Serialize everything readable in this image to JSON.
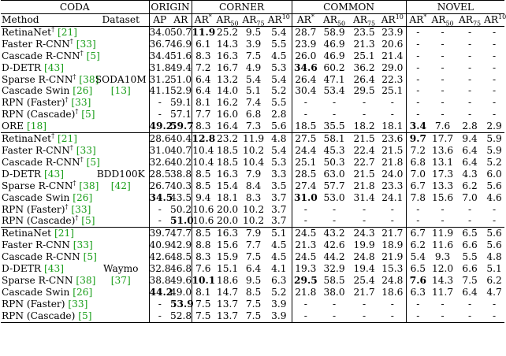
{
  "header": {
    "coda": "CODA",
    "groups": [
      "ORIGIN",
      "CORNER",
      "COMMON",
      "NOVEL"
    ],
    "method": "Method",
    "dataset": "Dataset",
    "origin_cols": [
      "AP",
      "AR"
    ],
    "ar_cols": [
      {
        "base": "AR",
        "sup": "*",
        "sub": ""
      },
      {
        "base": "AR",
        "sup": "",
        "sub": "50"
      },
      {
        "base": "AR",
        "sup": "",
        "sub": "75"
      },
      {
        "base": "AR",
        "sup": "10",
        "sub": ""
      }
    ]
  },
  "sections": [
    {
      "dataset": "SODA10M",
      "dataset_ref": "[13]",
      "rows": [
        {
          "method": "RetinaNet",
          "dagger": "†",
          "ref": "[21]",
          "cells": [
            "34.0",
            "50.7",
            "11.9",
            "25.2",
            "9.5",
            "5.4",
            "28.7",
            "58.9",
            "23.5",
            "23.9",
            "-",
            "-",
            "-",
            "-"
          ],
          "bold": [
            2
          ]
        },
        {
          "method": "Faster R-CNN",
          "dagger": "†",
          "ref": "[33]",
          "cells": [
            "36.7",
            "46.9",
            "6.1",
            "14.3",
            "3.9",
            "5.5",
            "23.9",
            "46.9",
            "21.3",
            "20.6",
            "-",
            "-",
            "-",
            "-"
          ],
          "bold": []
        },
        {
          "method": "Cascade R-CNN",
          "dagger": "†",
          "ref": "[5]",
          "cells": [
            "34.4",
            "51.6",
            "8.3",
            "16.3",
            "7.5",
            "4.5",
            "26.0",
            "46.9",
            "25.1",
            "21.4",
            "-",
            "-",
            "-",
            "-"
          ],
          "bold": []
        },
        {
          "method": "D-DETR",
          "dagger": "",
          "ref": "[43]",
          "cells": [
            "31.8",
            "49.4",
            "7.2",
            "16.7",
            "4.9",
            "5.3",
            "34.6",
            "60.2",
            "36.2",
            "29.0",
            "-",
            "-",
            "-",
            "-"
          ],
          "bold": [
            6
          ]
        },
        {
          "method": "Sparse R-CNN",
          "dagger": "†",
          "ref": "[38]",
          "cells": [
            "31.2",
            "51.0",
            "6.4",
            "13.2",
            "5.4",
            "5.4",
            "26.4",
            "47.1",
            "26.4",
            "22.3",
            "-",
            "-",
            "-",
            "-"
          ],
          "bold": []
        },
        {
          "method": "Cascade Swin",
          "dagger": "",
          "ref": "[26]",
          "cells": [
            "41.1",
            "52.9",
            "6.4",
            "14.0",
            "5.1",
            "5.2",
            "30.4",
            "53.4",
            "29.5",
            "25.1",
            "-",
            "-",
            "-",
            "-"
          ],
          "bold": []
        },
        {
          "method": "RPN (Faster)",
          "dagger": "†",
          "ref": "[33]",
          "cells": [
            "-",
            "59.1",
            "8.1",
            "16.2",
            "7.4",
            "5.5",
            "-",
            "-",
            "-",
            "-",
            "-",
            "-",
            "-",
            "-"
          ],
          "bold": []
        },
        {
          "method": "RPN (Cascade)",
          "dagger": "†",
          "ref": "[5]",
          "cells": [
            "-",
            "57.1",
            "7.7",
            "16.0",
            "6.8",
            "2.8",
            "-",
            "-",
            "-",
            "-",
            "-",
            "-",
            "-",
            "-"
          ],
          "bold": []
        },
        {
          "method": "ORE",
          "dagger": "",
          "ref": "[18]",
          "cells": [
            "49.2",
            "59.7",
            "8.3",
            "16.4",
            "7.3",
            "5.6",
            "18.5",
            "35.5",
            "18.2",
            "18.1",
            "3.4",
            "7.6",
            "2.8",
            "2.9"
          ],
          "bold": [
            0,
            1,
            10
          ]
        }
      ]
    },
    {
      "dataset": "BDD100K",
      "dataset_ref": "[42]",
      "rows": [
        {
          "method": "RetinaNet",
          "dagger": "†",
          "ref": "[21]",
          "cells": [
            "28.6",
            "40.4",
            "12.8",
            "23.2",
            "11.9",
            "4.8",
            "27.5",
            "58.1",
            "21.5",
            "23.6",
            "9.7",
            "17.7",
            "9.4",
            "5.9"
          ],
          "bold": [
            2,
            10
          ]
        },
        {
          "method": "Faster R-CNN",
          "dagger": "†",
          "ref": "[33]",
          "cells": [
            "31.0",
            "40.7",
            "10.4",
            "18.5",
            "10.2",
            "5.4",
            "24.4",
            "45.3",
            "22.4",
            "21.5",
            "7.2",
            "13.6",
            "6.4",
            "5.9"
          ],
          "bold": []
        },
        {
          "method": "Cascade R-CNN",
          "dagger": "†",
          "ref": "[5]",
          "cells": [
            "32.6",
            "40.2",
            "10.4",
            "18.5",
            "10.4",
            "5.3",
            "25.1",
            "50.3",
            "22.7",
            "21.8",
            "6.8",
            "13.1",
            "6.4",
            "5.2"
          ],
          "bold": []
        },
        {
          "method": "D-DETR",
          "dagger": "",
          "ref": "[43]",
          "cells": [
            "28.5",
            "38.8",
            "8.5",
            "16.3",
            "7.9",
            "3.3",
            "28.5",
            "63.0",
            "21.5",
            "24.0",
            "7.0",
            "17.3",
            "4.3",
            "6.0"
          ],
          "bold": []
        },
        {
          "method": "Sparse R-CNN",
          "dagger": "†",
          "ref": "[38]",
          "cells": [
            "26.7",
            "40.3",
            "8.5",
            "15.4",
            "8.4",
            "3.5",
            "27.4",
            "57.7",
            "21.8",
            "23.3",
            "6.7",
            "13.3",
            "6.2",
            "5.6"
          ],
          "bold": []
        },
        {
          "method": "Cascade Swin",
          "dagger": "",
          "ref": "[26]",
          "cells": [
            "34.5",
            "43.5",
            "9.4",
            "18.1",
            "8.3",
            "3.7",
            "31.0",
            "53.0",
            "31.4",
            "24.1",
            "7.8",
            "15.6",
            "7.0",
            "4.6"
          ],
          "bold": [
            0,
            6
          ]
        },
        {
          "method": "RPN (Faster)",
          "dagger": "†",
          "ref": "[33]",
          "cells": [
            "-",
            "50.2",
            "10.6",
            "20.0",
            "10.2",
            "3.7",
            "-",
            "-",
            "-",
            "-",
            "-",
            "-",
            "-",
            "-"
          ],
          "bold": []
        },
        {
          "method": "RPN (Cascade)",
          "dagger": "†",
          "ref": "[5]",
          "cells": [
            "-",
            "51.0",
            "10.6",
            "20.0",
            "10.2",
            "3.7",
            "-",
            "-",
            "-",
            "-",
            "-",
            "-",
            "-",
            "-"
          ],
          "bold": [
            1
          ]
        }
      ]
    },
    {
      "dataset": "Waymo",
      "dataset_ref": "[37]",
      "rows": [
        {
          "method": "RetinaNet",
          "dagger": "",
          "ref": "[21]",
          "cells": [
            "39.7",
            "47.7",
            "8.5",
            "16.3",
            "7.9",
            "5.1",
            "24.5",
            "43.2",
            "24.3",
            "21.7",
            "6.7",
            "11.9",
            "6.5",
            "5.6"
          ],
          "bold": []
        },
        {
          "method": "Faster R-CNN",
          "dagger": "",
          "ref": "[33]",
          "cells": [
            "40.9",
            "42.9",
            "8.8",
            "15.6",
            "7.7",
            "4.5",
            "21.3",
            "42.6",
            "19.9",
            "18.9",
            "6.2",
            "11.6",
            "6.6",
            "5.6"
          ],
          "bold": []
        },
        {
          "method": "Cascade R-CNN",
          "dagger": "",
          "ref": "[5]",
          "cells": [
            "42.6",
            "48.5",
            "8.3",
            "15.9",
            "7.5",
            "4.5",
            "24.5",
            "44.2",
            "24.8",
            "21.9",
            "5.4",
            "9.3",
            "5.5",
            "4.8"
          ],
          "bold": []
        },
        {
          "method": "D-DETR",
          "dagger": "",
          "ref": "[43]",
          "cells": [
            "32.8",
            "46.8",
            "7.6",
            "15.1",
            "6.4",
            "4.1",
            "19.3",
            "32.9",
            "19.4",
            "15.3",
            "6.5",
            "12.0",
            "6.6",
            "5.1"
          ],
          "bold": []
        },
        {
          "method": "Sparse R-CNN",
          "dagger": "",
          "ref": "[38]",
          "cells": [
            "38.8",
            "49.6",
            "10.1",
            "18.6",
            "9.5",
            "6.3",
            "29.5",
            "58.5",
            "25.4",
            "24.8",
            "7.6",
            "14.3",
            "7.5",
            "6.2"
          ],
          "bold": [
            2,
            6,
            10
          ]
        },
        {
          "method": "Cascade Swin",
          "dagger": "",
          "ref": "[26]",
          "cells": [
            "44.2",
            "49.0",
            "8.1",
            "14.7",
            "8.5",
            "5.2",
            "21.8",
            "38.0",
            "21.7",
            "18.6",
            "6.3",
            "11.7",
            "6.4",
            "4.7"
          ],
          "bold": [
            0
          ]
        },
        {
          "method": "RPN (Faster)",
          "dagger": "",
          "ref": "[33]",
          "cells": [
            "-",
            "53.9",
            "7.5",
            "13.7",
            "7.5",
            "3.9",
            "-",
            "-",
            "-",
            "-",
            "-",
            "-",
            "-",
            "-"
          ],
          "bold": [
            1
          ]
        },
        {
          "method": "RPN (Cascade)",
          "dagger": "",
          "ref": "[5]",
          "cells": [
            "-",
            "52.8",
            "7.5",
            "13.7",
            "7.5",
            "3.9",
            "-",
            "-",
            "-",
            "-",
            "-",
            "-",
            "-",
            "-"
          ],
          "bold": []
        }
      ]
    }
  ]
}
